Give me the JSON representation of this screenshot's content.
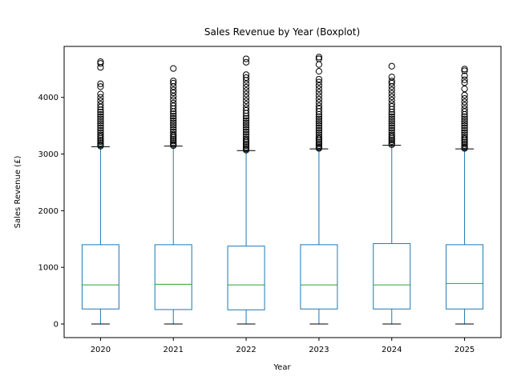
{
  "chart_data": {
    "type": "boxplot",
    "title": "Sales Revenue by Year (Boxplot)",
    "xlabel": "Year",
    "ylabel": "Sales Revenue (£)",
    "ylim": [
      -240,
      4900
    ],
    "yticks": [
      0,
      1000,
      2000,
      3000,
      4000
    ],
    "grid": false,
    "colors": {
      "box": "#1f77b4",
      "median": "#2ca02c",
      "whisker_cap": "#000000",
      "outlier": "#000000"
    },
    "categories": [
      "2020",
      "2021",
      "2022",
      "2023",
      "2024",
      "2025"
    ],
    "boxes": [
      {
        "year": "2020",
        "min": 0,
        "q1": 265,
        "median": 690,
        "q3": 1400,
        "whisker_high": 3130,
        "outliers": [
          3140,
          3160,
          3190,
          3220,
          3250,
          3280,
          3310,
          3340,
          3380,
          3420,
          3460,
          3500,
          3540,
          3580,
          3620,
          3660,
          3700,
          3740,
          3780,
          3830,
          3880,
          3940,
          4000,
          4060,
          4190,
          4240,
          4530,
          4600,
          4630
        ]
      },
      {
        "year": "2021",
        "min": 0,
        "q1": 255,
        "median": 700,
        "q3": 1400,
        "whisker_high": 3140,
        "outliers": [
          3150,
          3170,
          3200,
          3230,
          3260,
          3290,
          3320,
          3350,
          3390,
          3430,
          3470,
          3510,
          3550,
          3590,
          3630,
          3670,
          3710,
          3750,
          3800,
          3850,
          3900,
          3960,
          4020,
          4080,
          4130,
          4190,
          4250,
          4290,
          4510
        ]
      },
      {
        "year": "2022",
        "min": 0,
        "q1": 250,
        "median": 690,
        "q3": 1375,
        "whisker_high": 3060,
        "outliers": [
          3070,
          3090,
          3120,
          3150,
          3180,
          3210,
          3240,
          3270,
          3310,
          3350,
          3390,
          3430,
          3470,
          3510,
          3550,
          3590,
          3630,
          3670,
          3720,
          3770,
          3820,
          3880,
          3940,
          4000,
          4060,
          4120,
          4180,
          4240,
          4300,
          4350,
          4400,
          4620,
          4680
        ]
      },
      {
        "year": "2023",
        "min": 0,
        "q1": 265,
        "median": 690,
        "q3": 1400,
        "whisker_high": 3090,
        "outliers": [
          3100,
          3120,
          3150,
          3180,
          3210,
          3240,
          3270,
          3300,
          3340,
          3380,
          3420,
          3460,
          3500,
          3540,
          3580,
          3620,
          3660,
          3700,
          3750,
          3800,
          3850,
          3910,
          3970,
          4030,
          4090,
          4150,
          4210,
          4270,
          4320,
          4460,
          4580,
          4680,
          4710
        ]
      },
      {
        "year": "2024",
        "min": 0,
        "q1": 265,
        "median": 690,
        "q3": 1420,
        "whisker_high": 3155,
        "outliers": [
          3165,
          3190,
          3220,
          3250,
          3280,
          3310,
          3340,
          3380,
          3420,
          3460,
          3500,
          3540,
          3580,
          3620,
          3660,
          3700,
          3740,
          3790,
          3840,
          3890,
          3950,
          4010,
          4070,
          4130,
          4190,
          4250,
          4290,
          4360,
          4550
        ]
      },
      {
        "year": "2025",
        "min": 0,
        "q1": 265,
        "median": 715,
        "q3": 1400,
        "whisker_high": 3090,
        "outliers": [
          3100,
          3120,
          3150,
          3180,
          3210,
          3240,
          3270,
          3300,
          3340,
          3380,
          3420,
          3460,
          3500,
          3540,
          3580,
          3620,
          3660,
          3700,
          3750,
          3800,
          3860,
          3920,
          3980,
          4040,
          4150,
          4260,
          4310,
          4380,
          4470,
          4500
        ]
      }
    ]
  }
}
